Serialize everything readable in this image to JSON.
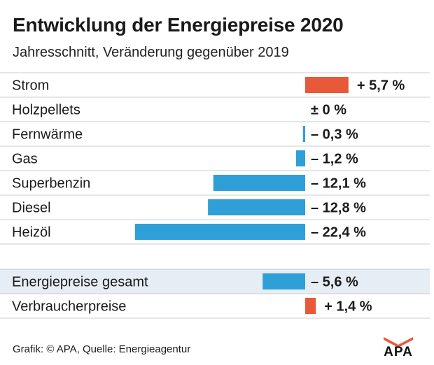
{
  "title": "Entwicklung der Energiepreise 2020",
  "subtitle": "Jahresschnitt, Veränderung gegenüber 2019",
  "footer": "Grafik: © APA, Quelle: Energieagentur",
  "logo_text": "APA",
  "colors": {
    "positive": "#e8593a",
    "negative": "#2f9fd8",
    "summary_band": "#e6edf5",
    "divider": "#c8ccd2"
  },
  "chart_data": {
    "type": "bar",
    "orientation": "horizontal",
    "unit": "%",
    "title": "Entwicklung der Energiepreise 2020",
    "subtitle": "Jahresschnitt, Veränderung gegenüber 2019",
    "categories": [
      "Strom",
      "Holzpellets",
      "Fernwärme",
      "Gas",
      "Superbenzin",
      "Diesel",
      "Heizöl"
    ],
    "values": [
      5.7,
      0,
      -0.3,
      -1.2,
      -12.1,
      -12.8,
      -22.4
    ],
    "value_labels": [
      "+ 5,7 %",
      "± 0 %",
      "– 0,3 %",
      "– 1,2 %",
      "– 12,1 %",
      "– 12,8 %",
      "– 22,4 %"
    ],
    "summary": {
      "categories": [
        "Energiepreise gesamt",
        "Verbraucherpreise"
      ],
      "values": [
        -5.6,
        1.4
      ],
      "value_labels": [
        "– 5,6 %",
        "+ 1,4 %"
      ]
    }
  }
}
